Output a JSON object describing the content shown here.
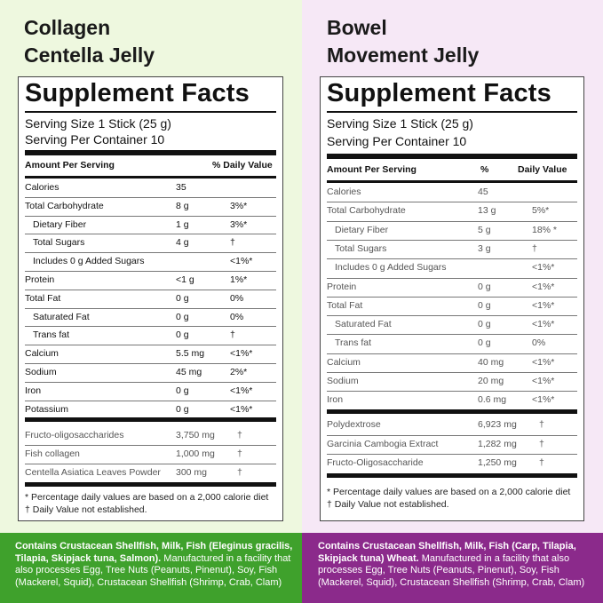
{
  "left": {
    "title_line1": "Collagen",
    "title_line2": "Centella Jelly",
    "facts_title": "Supplement Facts",
    "serving_size": "Serving Size 1 Stick (25 g)",
    "servings_per_container": "Serving Per Container 10",
    "header_amount": "Amount Per Serving",
    "header_dv": "% Daily Value",
    "rows": [
      {
        "name": "Calories",
        "amount": "35",
        "dv": ""
      },
      {
        "name": "Total Carbohydrate",
        "amount": "8 g",
        "dv": "3%*"
      },
      {
        "name": "Dietary Fiber",
        "amount": "1 g",
        "dv": "3%*"
      },
      {
        "name": "Total Sugars",
        "amount": "4 g",
        "dv": "†"
      },
      {
        "name": "Includes 0 g Added Sugars",
        "amount": "",
        "dv": "<1%*"
      },
      {
        "name": "Protein",
        "amount": "<1 g",
        "dv": "1%*"
      },
      {
        "name": "Total Fat",
        "amount": "0 g",
        "dv": "0%"
      },
      {
        "name": "Saturated Fat",
        "amount": "0 g",
        "dv": "0%"
      },
      {
        "name": "Trans fat",
        "amount": "0 g",
        "dv": "†"
      },
      {
        "name": "Calcium",
        "amount": "5.5 mg",
        "dv": "<1%*"
      },
      {
        "name": "Sodium",
        "amount": "45 mg",
        "dv": "2%*"
      },
      {
        "name": "Iron",
        "amount": "0 g",
        "dv": "<1%*"
      },
      {
        "name": "Potassium",
        "amount": "0 g",
        "dv": "<1%*"
      }
    ],
    "extra_rows": [
      {
        "name": "Fructo-oligosaccharides",
        "amount": "3,750 mg",
        "dv": "†"
      },
      {
        "name": "Fish collagen",
        "amount": "1,000 mg",
        "dv": "†"
      },
      {
        "name": "Centella Asiatica Leaves Powder",
        "amount": "300 mg",
        "dv": "†"
      }
    ],
    "footnote1": "* Percentage daily values are based on a 2,000 calorie diet",
    "footnote2": "† Daily Value not established.",
    "allergen_bold": "Contains Crustacean Shellfish, Milk, Fish (Eleginus gracilis, Tilapia, Skipjack tuna, Salmon).",
    "allergen_rest": " Manufactured in a facility that also processes Egg, Tree Nuts (Peanuts, Pinenut), Soy, Fish (Mackerel, Squid), Crustacean Shellfish (Shrimp, Crab, Clam)",
    "banner_color": "#3fa12c",
    "bg_color": "#eef8df"
  },
  "right": {
    "title_line1": "Bowel",
    "title_line2": "Movement Jelly",
    "facts_title": "Supplement Facts",
    "serving_size": "Serving Size 1 Stick (25 g)",
    "servings_per_container": "Serving Per Container 10",
    "header_amount": "Amount Per Serving",
    "header_pct": "%",
    "header_dv": "Daily Value",
    "rows": [
      {
        "name": "Calories",
        "amount": "45",
        "dv": ""
      },
      {
        "name": "Total Carbohydrate",
        "amount": "13 g",
        "dv": "5%*"
      },
      {
        "name": "Dietary Fiber",
        "amount": "5 g",
        "dv": "18% *"
      },
      {
        "name": "Total Sugars",
        "amount": "3 g",
        "dv": "†"
      },
      {
        "name": "Includes 0 g Added Sugars",
        "amount": "",
        "dv": "<1%*"
      },
      {
        "name": "Protein",
        "amount": "0 g",
        "dv": "<1%*"
      },
      {
        "name": "Total Fat",
        "amount": "0 g",
        "dv": "<1%*"
      },
      {
        "name": "Saturated Fat",
        "amount": "0 g",
        "dv": "<1%*"
      },
      {
        "name": "Trans fat",
        "amount": "0 g",
        "dv": "0%"
      },
      {
        "name": "Calcium",
        "amount": "40 mg",
        "dv": "<1%*"
      },
      {
        "name": "Sodium",
        "amount": "20 mg",
        "dv": "<1%*"
      },
      {
        "name": "Iron",
        "amount": "0.6 mg",
        "dv": "<1%*"
      }
    ],
    "extra_rows": [
      {
        "name": "Polydextrose",
        "amount": "6,923 mg",
        "dv": "†"
      },
      {
        "name": "Garcinia Cambogia Extract",
        "amount": "1,282 mg",
        "dv": "†"
      },
      {
        "name": "Fructo-Oligosaccharide",
        "amount": "1,250 mg",
        "dv": "†"
      }
    ],
    "footnote1": "* Percentage daily values are based on a 2,000 calorie diet",
    "footnote2": "† Daily Value not established.",
    "allergen_bold": "Contains Crustacean Shellfish, Milk, Fish (Carp, Tilapia, Skipjack tuna) Wheat.",
    "allergen_rest": " Manufactured in a facility that also processes Egg, Tree Nuts (Peanuts, Pinenut), Soy, Fish (Mackerel, Squid), Crustacean Shellfish (Shrimp, Crab, Clam)",
    "banner_color": "#8b2a8b",
    "bg_color": "#f6e8f6"
  }
}
